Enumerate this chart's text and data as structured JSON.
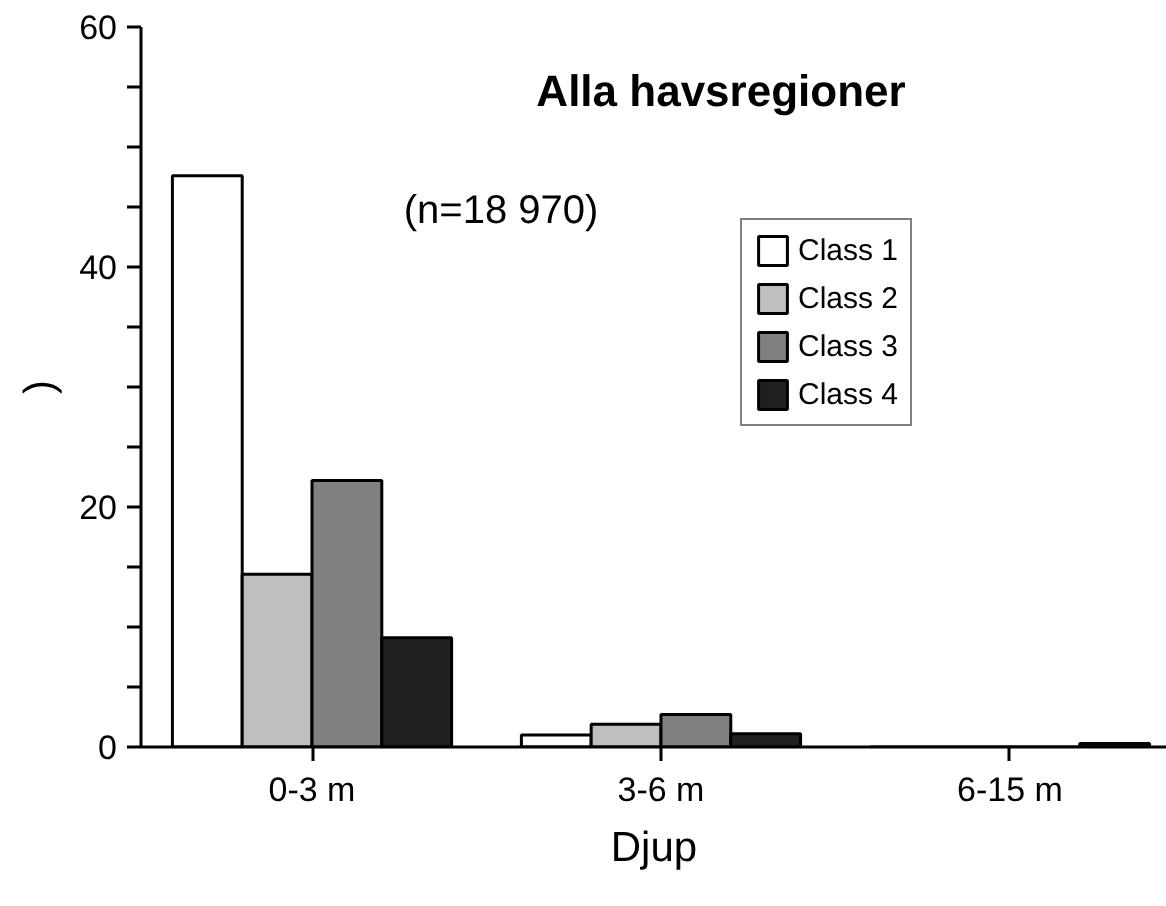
{
  "chart_data": {
    "type": "bar",
    "title": "Alla havsregioner",
    "categories": [
      "0-3 m",
      "3-6 m",
      "6-15 m"
    ],
    "series": [
      {
        "name": "Class 1",
        "color": "#ffffff",
        "values": [
          47.6,
          1.0,
          0
        ]
      },
      {
        "name": "Class 2",
        "color": "#bfbfbf",
        "values": [
          14.4,
          1.9,
          0
        ]
      },
      {
        "name": "Class 3",
        "color": "#808080",
        "values": [
          22.2,
          2.7,
          null
        ]
      },
      {
        "name": "Class 4",
        "color": "#202020",
        "values": [
          9.1,
          1.1,
          0.3
        ]
      }
    ],
    "xlabel": "Djup",
    "ylabel": ")",
    "annotations": [
      "(n=18 970)"
    ],
    "ylim": [
      0,
      60
    ],
    "yticks": [
      0,
      {
        "value": 5,
        "label": null
      },
      {
        "value": 10,
        "label": null
      },
      {
        "value": 15,
        "label": null
      },
      20,
      {
        "value": 25,
        "label": null
      },
      {
        "value": 30,
        "label": null
      },
      {
        "value": 35,
        "label": null
      },
      40,
      {
        "value": 45,
        "label": null
      },
      {
        "value": 50,
        "label": null
      },
      {
        "value": 55,
        "label": null
      },
      60
    ],
    "legend": "top right",
    "grid": false
  }
}
